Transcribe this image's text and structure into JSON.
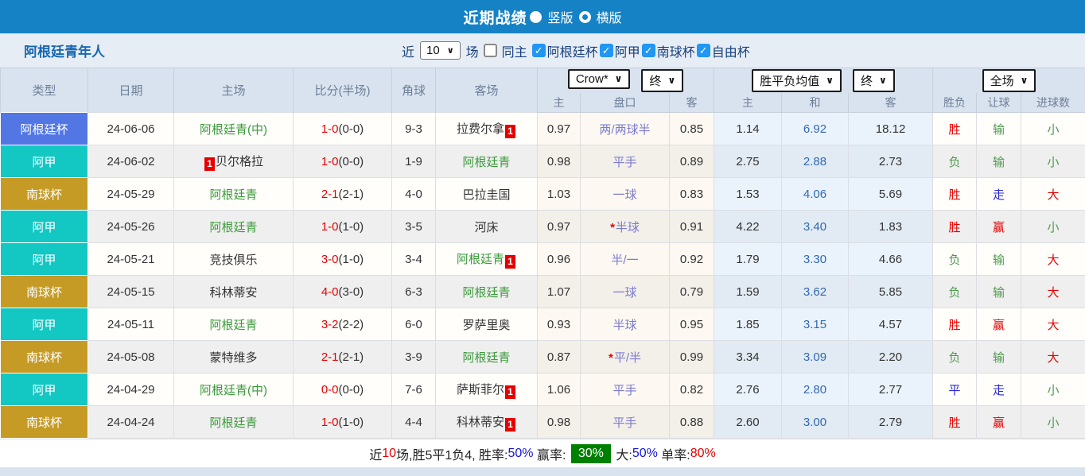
{
  "title_bar": {
    "title": "近期战绩",
    "radio_vertical_label": "竖版",
    "radio_horizontal_label": "横版"
  },
  "filter": {
    "team": "阿根廷青年人",
    "near_label": "近",
    "count_value": "10",
    "matches_label": "场",
    "same_home_away_label": "同主",
    "leagues": [
      {
        "label": "阿根廷杯"
      },
      {
        "label": "阿甲"
      },
      {
        "label": "南球杯"
      },
      {
        "label": "自由杯"
      }
    ]
  },
  "table": {
    "headers": {
      "left": [
        "类型",
        "日期",
        "主场",
        "比分(半场)",
        "角球",
        "客场"
      ],
      "sub": [
        "主",
        "盘口",
        "客",
        "主",
        "和",
        "客",
        "胜负",
        "让球",
        "进球数"
      ]
    },
    "dropdowns": {
      "odds_source": "Crow*",
      "odds_time_1": "终",
      "avg_type": "胜平负均值",
      "odds_time_2": "终",
      "scope": "全场"
    },
    "rows": [
      {
        "league": "阿根廷杯",
        "date": "24-06-06",
        "home": {
          "name": "阿根廷青(中)",
          "green": true,
          "red_card": false
        },
        "away": {
          "name": "拉费尔拿",
          "green": false,
          "red_card": true
        },
        "score_main": "1-0",
        "score_half": "(0-0)",
        "corners": "9-3",
        "odds_home": "0.97",
        "handicap": "两/两球半",
        "handicap_star": false,
        "odds_away": "0.85",
        "avg_home": "1.14",
        "avg_draw": "6.92",
        "avg_away": "18.12",
        "result": "胜",
        "handicap_result": "输",
        "goals": "小"
      },
      {
        "league": "阿甲",
        "date": "24-06-02",
        "home": {
          "name": "贝尔格拉",
          "green": false,
          "red_card": true
        },
        "away": {
          "name": "阿根廷青",
          "green": true,
          "red_card": false
        },
        "score_main": "1-0",
        "score_half": "(0-0)",
        "corners": "1-9",
        "odds_home": "0.98",
        "handicap": "平手",
        "handicap_star": false,
        "odds_away": "0.89",
        "avg_home": "2.75",
        "avg_draw": "2.88",
        "avg_away": "2.73",
        "result": "负",
        "handicap_result": "输",
        "goals": "小"
      },
      {
        "league": "南球杯",
        "date": "24-05-29",
        "home": {
          "name": "阿根廷青",
          "green": true,
          "red_card": false
        },
        "away": {
          "name": "巴拉圭国",
          "green": false,
          "red_card": false
        },
        "score_main": "2-1",
        "score_half": "(2-1)",
        "corners": "4-0",
        "odds_home": "1.03",
        "handicap": "一球",
        "handicap_star": false,
        "odds_away": "0.83",
        "avg_home": "1.53",
        "avg_draw": "4.06",
        "avg_away": "5.69",
        "result": "胜",
        "handicap_result": "走",
        "goals": "大"
      },
      {
        "league": "阿甲",
        "date": "24-05-26",
        "home": {
          "name": "阿根廷青",
          "green": true,
          "red_card": false
        },
        "away": {
          "name": "河床",
          "green": false,
          "red_card": false
        },
        "score_main": "1-0",
        "score_half": "(1-0)",
        "corners": "3-5",
        "odds_home": "0.97",
        "handicap": "半球",
        "handicap_star": true,
        "odds_away": "0.91",
        "avg_home": "4.22",
        "avg_draw": "3.40",
        "avg_away": "1.83",
        "result": "胜",
        "handicap_result": "赢",
        "goals": "小"
      },
      {
        "league": "阿甲",
        "date": "24-05-21",
        "home": {
          "name": "竞技俱乐",
          "green": false,
          "red_card": false
        },
        "away": {
          "name": "阿根廷青",
          "green": true,
          "red_card": true
        },
        "score_main": "3-0",
        "score_half": "(1-0)",
        "corners": "3-4",
        "odds_home": "0.96",
        "handicap": "半/一",
        "handicap_star": false,
        "odds_away": "0.92",
        "avg_home": "1.79",
        "avg_draw": "3.30",
        "avg_away": "4.66",
        "result": "负",
        "handicap_result": "输",
        "goals": "大"
      },
      {
        "league": "南球杯",
        "date": "24-05-15",
        "home": {
          "name": "科林蒂安",
          "green": false,
          "red_card": false
        },
        "away": {
          "name": "阿根廷青",
          "green": true,
          "red_card": false
        },
        "score_main": "4-0",
        "score_half": "(3-0)",
        "corners": "6-3",
        "odds_home": "1.07",
        "handicap": "一球",
        "handicap_star": false,
        "odds_away": "0.79",
        "avg_home": "1.59",
        "avg_draw": "3.62",
        "avg_away": "5.85",
        "result": "负",
        "handicap_result": "输",
        "goals": "大"
      },
      {
        "league": "阿甲",
        "date": "24-05-11",
        "home": {
          "name": "阿根廷青",
          "green": true,
          "red_card": false
        },
        "away": {
          "name": "罗萨里奥",
          "green": false,
          "red_card": false
        },
        "score_main": "3-2",
        "score_half": "(2-2)",
        "corners": "6-0",
        "odds_home": "0.93",
        "handicap": "半球",
        "handicap_star": false,
        "odds_away": "0.95",
        "avg_home": "1.85",
        "avg_draw": "3.15",
        "avg_away": "4.57",
        "result": "胜",
        "handicap_result": "赢",
        "goals": "大"
      },
      {
        "league": "南球杯",
        "date": "24-05-08",
        "home": {
          "name": "蒙特维多",
          "green": false,
          "red_card": false
        },
        "away": {
          "name": "阿根廷青",
          "green": true,
          "red_card": false
        },
        "score_main": "2-1",
        "score_half": "(2-1)",
        "corners": "3-9",
        "odds_home": "0.87",
        "handicap": "平/半",
        "handicap_star": true,
        "odds_away": "0.99",
        "avg_home": "3.34",
        "avg_draw": "3.09",
        "avg_away": "2.20",
        "result": "负",
        "handicap_result": "输",
        "goals": "大"
      },
      {
        "league": "阿甲",
        "date": "24-04-29",
        "home": {
          "name": "阿根廷青(中)",
          "green": true,
          "red_card": false
        },
        "away": {
          "name": "萨斯菲尔",
          "green": false,
          "red_card": true
        },
        "score_main": "0-0",
        "score_half": "(0-0)",
        "corners": "7-6",
        "odds_home": "1.06",
        "handicap": "平手",
        "handicap_star": false,
        "odds_away": "0.82",
        "avg_home": "2.76",
        "avg_draw": "2.80",
        "avg_away": "2.77",
        "result": "平",
        "handicap_result": "走",
        "goals": "小"
      },
      {
        "league": "南球杯",
        "date": "24-04-24",
        "home": {
          "name": "阿根廷青",
          "green": true,
          "red_card": false
        },
        "away": {
          "name": "科林蒂安",
          "green": false,
          "red_card": true
        },
        "score_main": "1-0",
        "score_half": "(1-0)",
        "corners": "4-4",
        "odds_home": "0.98",
        "handicap": "平手",
        "handicap_star": false,
        "odds_away": "0.88",
        "avg_home": "2.60",
        "avg_draw": "3.00",
        "avg_away": "2.79",
        "result": "胜",
        "handicap_result": "赢",
        "goals": "小"
      }
    ]
  },
  "footer": {
    "segments": [
      {
        "text": "近",
        "cls": "fk"
      },
      {
        "text": "10",
        "cls": "fr"
      },
      {
        "text": "场,胜5平1负4, 胜率:",
        "cls": "fk"
      },
      {
        "text": "50%",
        "cls": "fb"
      },
      {
        "text": " 赢率: ",
        "cls": "fk"
      },
      {
        "text": "30%",
        "cls": "fg"
      },
      {
        "text": " 大:",
        "cls": "fk"
      },
      {
        "text": "50%",
        "cls": "fb"
      },
      {
        "text": " 单率:",
        "cls": "fk"
      },
      {
        "text": "80%",
        "cls": "fr"
      }
    ]
  },
  "colors": {
    "topbar": "#1682C6",
    "leagues": {
      "阿根廷杯": "#5277E5",
      "阿甲": "#13C7C3",
      "南球杯": "#C59B25"
    },
    "team_green": "#3A9A3A",
    "score_red": "#E60000",
    "result_win_red": "#E60000",
    "result_lose_green": "#4E9A4E",
    "result_draw_blue": "#2828CC",
    "footer_rate_green_bg": "#008000"
  }
}
